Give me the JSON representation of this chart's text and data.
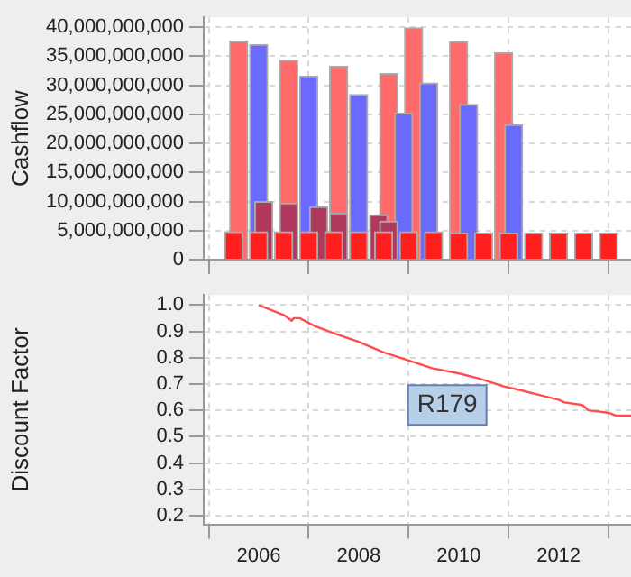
{
  "chart_data": [
    {
      "type": "bar",
      "ylabel": "Cashflow",
      "xlim": [
        2004.9,
        2013.45
      ],
      "xticks": [
        2006,
        2008,
        2010,
        2012
      ],
      "ylim": [
        0,
        41700000000
      ],
      "yticks": [
        {
          "value": 0,
          "label": "0"
        },
        {
          "value": 5000000000,
          "label": "5,000,000,000"
        },
        {
          "value": 10000000000,
          "label": "10,000,000,000"
        },
        {
          "value": 15000000000,
          "label": "15,000,000,000"
        },
        {
          "value": 20000000000,
          "label": "20,000,000,000"
        },
        {
          "value": 25000000000,
          "label": "25,000,000,000"
        },
        {
          "value": 30000000000,
          "label": "30,000,000,000"
        },
        {
          "value": 35000000000,
          "label": "35,000,000,000"
        },
        {
          "value": 40000000000,
          "label": "40,000,000,000"
        }
      ],
      "tick_labels": "y",
      "grid": true,
      "series": [
        {
          "color": "#ff6a6a",
          "x": [
            2005.6,
            2006.6,
            2007.6,
            2008.6,
            2009.1,
            2010.0,
            2010.9
          ],
          "values": [
            37600000000,
            34300000000,
            33300000000,
            32000000000,
            39900000000,
            37500000000,
            35600000000
          ]
        },
        {
          "color": "#6a6aff",
          "x": [
            2006.0,
            2007.0,
            2008.0,
            2008.9,
            2009.4,
            2010.2,
            2011.1
          ],
          "values": [
            37000000000,
            31600000000,
            28400000000,
            25200000000,
            30400000000,
            26700000000,
            23200000000
          ]
        },
        {
          "color": "#b03a5e",
          "x": [
            2006.1,
            2006.6,
            2007.2,
            2007.6,
            2008.4,
            2008.6
          ],
          "values": [
            10000000000,
            9700000000,
            9100000000,
            8000000000,
            7700000000,
            6600000000
          ]
        },
        {
          "color": "#ff1f1f",
          "x": [
            2005.5,
            2006.0,
            2006.5,
            2007.0,
            2007.5,
            2008.0,
            2008.5,
            2009.0,
            2009.5,
            2010.0,
            2010.5,
            2011.0,
            2011.5,
            2012.0,
            2012.5,
            2013.0
          ],
          "values": [
            4800000000,
            4800000000,
            4800000000,
            4800000000,
            4800000000,
            4800000000,
            4800000000,
            4800000000,
            4800000000,
            4600000000,
            4600000000,
            4600000000,
            4600000000,
            4600000000,
            4600000000,
            4600000000
          ]
        }
      ]
    },
    {
      "type": "line",
      "ylabel": "Discount Factor",
      "xlim": [
        2004.9,
        2013.45
      ],
      "xticks": [
        2006,
        2008,
        2010,
        2012
      ],
      "ylim": [
        0.167,
        1.038
      ],
      "yticks": [
        0.2,
        0.3,
        0.4,
        0.5,
        0.6,
        0.7,
        0.8,
        0.9,
        {
          "value": 1,
          "label": "1.0"
        }
      ],
      "grid": true,
      "marker": "none",
      "annotations": [
        "R179"
      ],
      "series": [
        {
          "color": "#ff4d4d",
          "x": [
            2006,
            2006.52,
            2006.66,
            2006.7,
            2006.82,
            2007.12,
            2007.54,
            2008,
            2008.5,
            2008.99,
            2009.47,
            2010.01,
            2010.43,
            2010.92,
            2011.16,
            2011.58,
            2012,
            2012.12,
            2012.48,
            2012.6,
            2013.02,
            2013.14,
            2013.45
          ],
          "values": [
            1.0,
            0.96,
            0.94,
            0.95,
            0.95,
            0.92,
            0.89,
            0.86,
            0.82,
            0.79,
            0.76,
            0.74,
            0.72,
            0.69,
            0.68,
            0.66,
            0.64,
            0.63,
            0.62,
            0.6,
            0.59,
            0.58,
            0.58
          ]
        }
      ]
    }
  ]
}
